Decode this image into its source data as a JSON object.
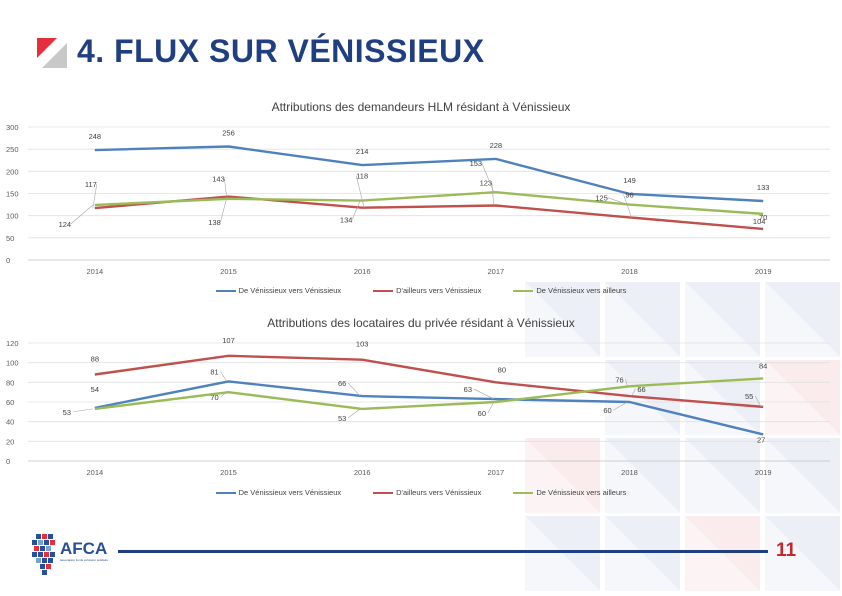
{
  "page": {
    "title": "4. FLUX SUR VÉNISSIEUX",
    "page_number": "11",
    "logo_text": "AFCA",
    "logo_subtitle": "association fonds cohésion solidaire"
  },
  "colors": {
    "title": "#1f3f80",
    "accent_red": "#c2282e",
    "series_blue": "#4f81bd",
    "series_red": "#c0504d",
    "series_green": "#9bbb59"
  },
  "chart_data": [
    {
      "type": "line",
      "title": "Attributions des demandeurs HLM résidant à Vénissieux",
      "x": [
        "2014",
        "2015",
        "2016",
        "2017",
        "2018",
        "2019"
      ],
      "yticks": [
        "0",
        "50",
        "100",
        "150",
        "200",
        "250",
        "300"
      ],
      "ylim": [
        0,
        300
      ],
      "grid": true,
      "legend": "bottom",
      "series": [
        {
          "name": "De Vénissieux vers Vénissieux",
          "color": "#4f81bd",
          "values": [
            248,
            256,
            214,
            228,
            149,
            133
          ],
          "labels": [
            "248",
            "256",
            "214",
            "228",
            "149",
            "133"
          ]
        },
        {
          "name": "D'ailleurs vers Vénissieux",
          "color": "#c0504d",
          "values": [
            117,
            143,
            118,
            123,
            96,
            70
          ],
          "labels": [
            "117",
            "143",
            "118",
            "123",
            "96",
            "70"
          ]
        },
        {
          "name": "De Vénissieux vers ailleurs",
          "color": "#9bbb59",
          "values": [
            124,
            138,
            134,
            153,
            125,
            104
          ],
          "labels": [
            "124",
            "138",
            "134",
            "153",
            "125",
            "104"
          ]
        }
      ]
    },
    {
      "type": "line",
      "title": "Attributions des locataires du privée résidant à Vénissieux",
      "x": [
        "2014",
        "2015",
        "2016",
        "2017",
        "2018",
        "2019"
      ],
      "yticks": [
        "0",
        "20",
        "40",
        "60",
        "80",
        "100",
        "120"
      ],
      "ylim": [
        0,
        120
      ],
      "grid": true,
      "legend": "bottom",
      "series": [
        {
          "name": "De Vénissieux vers Vénissieux",
          "color": "#4f81bd",
          "values": [
            54,
            81,
            66,
            63,
            60,
            27
          ],
          "labels": [
            "54",
            "81",
            "66",
            "63",
            "60",
            "27"
          ]
        },
        {
          "name": "D'ailleurs vers Vénissieux",
          "color": "#c0504d",
          "values": [
            88,
            107,
            103,
            80,
            66,
            55
          ],
          "labels": [
            "88",
            "107",
            "103",
            "80",
            "66",
            "55"
          ]
        },
        {
          "name": "De Vénissieux vers ailleurs",
          "color": "#9bbb59",
          "values": [
            53,
            70,
            53,
            60,
            76,
            84
          ],
          "labels": [
            "53",
            "70",
            "53",
            "60",
            "76",
            "84"
          ]
        }
      ]
    }
  ]
}
